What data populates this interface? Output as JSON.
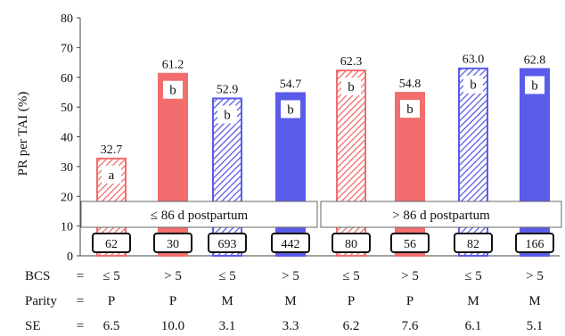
{
  "chart_data": {
    "type": "bar",
    "ylabel": "PR per TAI (%)",
    "ylim": [
      0,
      80
    ],
    "yticks": [
      0,
      10,
      20,
      30,
      40,
      50,
      60,
      70,
      80
    ],
    "grid": false,
    "groups": [
      {
        "label": "≤ 86 d postpartum",
        "start": 0,
        "end": 3
      },
      {
        "label": "> 86 d postpartum",
        "start": 4,
        "end": 7
      }
    ],
    "colors": {
      "primiparous": "#f26d6d",
      "multiparous": "#5b5bea"
    },
    "bars": [
      {
        "value": 32.7,
        "value_label": "32.7",
        "letter": "a",
        "n": "62",
        "bcs": "≤ 5",
        "parity": "P",
        "se": "6.5",
        "color": "#f26d6d",
        "pattern": "hatched"
      },
      {
        "value": 61.2,
        "value_label": "61.2",
        "letter": "b",
        "n": "30",
        "bcs": "> 5",
        "parity": "P",
        "se": "10.0",
        "color": "#f26d6d",
        "pattern": "solid"
      },
      {
        "value": 52.9,
        "value_label": "52.9",
        "letter": "b",
        "n": "693",
        "bcs": "≤ 5",
        "parity": "M",
        "se": "3.1",
        "color": "#5b5bea",
        "pattern": "hatched"
      },
      {
        "value": 54.7,
        "value_label": "54.7",
        "letter": "b",
        "n": "442",
        "bcs": "> 5",
        "parity": "M",
        "se": "3.3",
        "color": "#5b5bea",
        "pattern": "solid"
      },
      {
        "value": 62.3,
        "value_label": "62.3",
        "letter": "b",
        "n": "80",
        "bcs": "≤ 5",
        "parity": "P",
        "se": "6.2",
        "color": "#f26d6d",
        "pattern": "hatched"
      },
      {
        "value": 54.8,
        "value_label": "54.8",
        "letter": "b",
        "n": "56",
        "bcs": "> 5",
        "parity": "P",
        "se": "7.6",
        "color": "#f26d6d",
        "pattern": "solid"
      },
      {
        "value": 63.0,
        "value_label": "63.0",
        "letter": "b",
        "n": "82",
        "bcs": "≤ 5",
        "parity": "M",
        "se": "6.1",
        "color": "#5b5bea",
        "pattern": "hatched"
      },
      {
        "value": 62.8,
        "value_label": "62.8",
        "letter": "b",
        "n": "166",
        "bcs": "> 5",
        "parity": "M",
        "se": "5.1",
        "color": "#5b5bea",
        "pattern": "solid"
      }
    ],
    "row_labels": {
      "bcs": {
        "name": "BCS",
        "eq": "="
      },
      "parity": {
        "name": "Parity",
        "eq": "="
      },
      "se": {
        "name": "SE",
        "eq": "="
      }
    }
  }
}
